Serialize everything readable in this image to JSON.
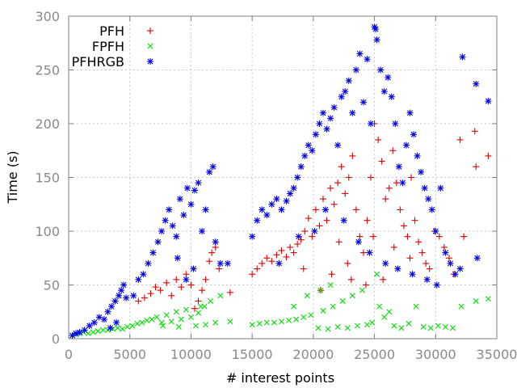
{
  "chart_data": {
    "type": "scatter",
    "title": "",
    "xlabel": "# interest points",
    "ylabel": "Time (s)",
    "xlim": [
      0,
      35000
    ],
    "ylim": [
      0,
      300
    ],
    "x_ticks": [
      "0",
      "5000",
      "10000",
      "15000",
      "20000",
      "25000",
      "30000",
      "35000"
    ],
    "y_ticks": [
      "0",
      "50",
      "100",
      "150",
      "200",
      "250",
      "300"
    ],
    "grid": true,
    "legend_position": "top-left",
    "series": [
      {
        "name": "PFH",
        "color": "#e00000",
        "marker": "plus",
        "points": [
          [
            5700,
            35
          ],
          [
            6200,
            38
          ],
          [
            6700,
            42
          ],
          [
            7100,
            48
          ],
          [
            7500,
            45
          ],
          [
            8000,
            52
          ],
          [
            8400,
            40
          ],
          [
            8800,
            55
          ],
          [
            9200,
            48
          ],
          [
            9600,
            60
          ],
          [
            10000,
            50
          ],
          [
            10300,
            28
          ],
          [
            10600,
            35
          ],
          [
            10900,
            45
          ],
          [
            11200,
            55
          ],
          [
            11500,
            72
          ],
          [
            11700,
            80
          ],
          [
            12000,
            85
          ],
          [
            12300,
            65
          ],
          [
            13200,
            43
          ],
          [
            15000,
            60
          ],
          [
            15400,
            65
          ],
          [
            15800,
            70
          ],
          [
            16200,
            75
          ],
          [
            16600,
            72
          ],
          [
            17000,
            78
          ],
          [
            17400,
            82
          ],
          [
            17800,
            76
          ],
          [
            18100,
            85
          ],
          [
            18400,
            80
          ],
          [
            18700,
            88
          ],
          [
            19000,
            92
          ],
          [
            19300,
            100
          ],
          [
            19600,
            112
          ],
          [
            19900,
            95
          ],
          [
            20200,
            120
          ],
          [
            20500,
            105
          ],
          [
            20800,
            130
          ],
          [
            21100,
            110
          ],
          [
            21400,
            140
          ],
          [
            21700,
            125
          ],
          [
            22000,
            145
          ],
          [
            22300,
            160
          ],
          [
            22600,
            135
          ],
          [
            22900,
            150
          ],
          [
            23200,
            170
          ],
          [
            23500,
            120
          ],
          [
            23800,
            95
          ],
          [
            24100,
            80
          ],
          [
            24400,
            110
          ],
          [
            24700,
            150
          ],
          [
            25000,
            200
          ],
          [
            25300,
            185
          ],
          [
            25600,
            165
          ],
          [
            25900,
            130
          ],
          [
            26200,
            140
          ],
          [
            26500,
            175
          ],
          [
            26800,
            145
          ],
          [
            27100,
            120
          ],
          [
            27400,
            105
          ],
          [
            27700,
            95
          ],
          [
            28000,
            150
          ],
          [
            28300,
            110
          ],
          [
            28600,
            90
          ],
          [
            28900,
            80
          ],
          [
            29200,
            70
          ],
          [
            29500,
            65
          ],
          [
            29900,
            100
          ],
          [
            30300,
            95
          ],
          [
            30700,
            85
          ],
          [
            31100,
            75
          ],
          [
            31500,
            60
          ],
          [
            32000,
            185
          ],
          [
            32300,
            95
          ],
          [
            33200,
            193
          ],
          [
            33300,
            160
          ],
          [
            34300,
            170
          ],
          [
            21500,
            60
          ],
          [
            22800,
            70
          ],
          [
            24300,
            50
          ],
          [
            25700,
            55
          ],
          [
            26600,
            85
          ],
          [
            27900,
            75
          ],
          [
            23100,
            55
          ],
          [
            20600,
            45
          ],
          [
            19200,
            65
          ],
          [
            22100,
            90
          ],
          [
            24900,
            95
          ]
        ]
      },
      {
        "name": "FPFH",
        "color": "#00e000",
        "marker": "x",
        "points": [
          [
            300,
            3
          ],
          [
            600,
            4
          ],
          [
            900,
            5
          ],
          [
            1200,
            6
          ],
          [
            1600,
            5
          ],
          [
            2000,
            6
          ],
          [
            2400,
            7
          ],
          [
            2800,
            8
          ],
          [
            3200,
            8
          ],
          [
            3600,
            9
          ],
          [
            4000,
            10
          ],
          [
            4400,
            9
          ],
          [
            4800,
            11
          ],
          [
            5200,
            12
          ],
          [
            5600,
            14
          ],
          [
            6000,
            15
          ],
          [
            6400,
            17
          ],
          [
            6800,
            18
          ],
          [
            7200,
            20
          ],
          [
            7600,
            15
          ],
          [
            8000,
            22
          ],
          [
            8400,
            16
          ],
          [
            8800,
            25
          ],
          [
            9200,
            18
          ],
          [
            9600,
            27
          ],
          [
            10000,
            20
          ],
          [
            10400,
            12
          ],
          [
            10800,
            30
          ],
          [
            11200,
            13
          ],
          [
            11600,
            35
          ],
          [
            12000,
            15
          ],
          [
            12400,
            40
          ],
          [
            13200,
            16
          ],
          [
            15000,
            13
          ],
          [
            15600,
            14
          ],
          [
            16200,
            15
          ],
          [
            16800,
            15
          ],
          [
            17400,
            16
          ],
          [
            18000,
            17
          ],
          [
            18600,
            18
          ],
          [
            19200,
            20
          ],
          [
            19800,
            22
          ],
          [
            20400,
            10
          ],
          [
            20800,
            26
          ],
          [
            21200,
            9
          ],
          [
            21600,
            30
          ],
          [
            22000,
            11
          ],
          [
            22400,
            35
          ],
          [
            22800,
            10
          ],
          [
            23200,
            40
          ],
          [
            23600,
            12
          ],
          [
            24000,
            45
          ],
          [
            24400,
            13
          ],
          [
            24800,
            15
          ],
          [
            25200,
            60
          ],
          [
            25400,
            30
          ],
          [
            25800,
            20
          ],
          [
            26200,
            25
          ],
          [
            26600,
            12
          ],
          [
            27200,
            10
          ],
          [
            27800,
            14
          ],
          [
            28400,
            30
          ],
          [
            29000,
            11
          ],
          [
            29600,
            10
          ],
          [
            30200,
            12
          ],
          [
            30800,
            11
          ],
          [
            31400,
            10
          ],
          [
            32100,
            30
          ],
          [
            33300,
            35
          ],
          [
            34300,
            37
          ],
          [
            19500,
            40
          ],
          [
            20600,
            45
          ],
          [
            21400,
            50
          ],
          [
            18400,
            30
          ],
          [
            7700,
            12
          ],
          [
            9000,
            11
          ],
          [
            10600,
            24
          ],
          [
            11100,
            30
          ]
        ]
      },
      {
        "name": "PFHRGB",
        "color": "#0000e6",
        "marker": "star",
        "points": [
          [
            300,
            3
          ],
          [
            600,
            5
          ],
          [
            900,
            6
          ],
          [
            1300,
            8
          ],
          [
            1700,
            12
          ],
          [
            2100,
            15
          ],
          [
            2500,
            20
          ],
          [
            2900,
            18
          ],
          [
            3200,
            25
          ],
          [
            3500,
            30
          ],
          [
            3800,
            35
          ],
          [
            4100,
            40
          ],
          [
            4300,
            45
          ],
          [
            4500,
            50
          ],
          [
            4700,
            38
          ],
          [
            3400,
            10
          ],
          [
            3900,
            15
          ],
          [
            5300,
            40
          ],
          [
            5700,
            55
          ],
          [
            6100,
            60
          ],
          [
            6500,
            70
          ],
          [
            6900,
            80
          ],
          [
            7300,
            90
          ],
          [
            7600,
            100
          ],
          [
            7900,
            110
          ],
          [
            8200,
            120
          ],
          [
            8500,
            105
          ],
          [
            8800,
            95
          ],
          [
            9100,
            130
          ],
          [
            9400,
            115
          ],
          [
            9700,
            140
          ],
          [
            10000,
            125
          ],
          [
            10300,
            138
          ],
          [
            10600,
            145
          ],
          [
            10900,
            100
          ],
          [
            11200,
            120
          ],
          [
            11500,
            155
          ],
          [
            11800,
            160
          ],
          [
            12000,
            90
          ],
          [
            12400,
            70
          ],
          [
            13000,
            70
          ],
          [
            8900,
            75
          ],
          [
            10200,
            65
          ],
          [
            9600,
            55
          ],
          [
            15000,
            95
          ],
          [
            15400,
            110
          ],
          [
            15800,
            120
          ],
          [
            16200,
            115
          ],
          [
            16600,
            125
          ],
          [
            17000,
            130
          ],
          [
            17400,
            120
          ],
          [
            17800,
            128
          ],
          [
            18100,
            135
          ],
          [
            18400,
            140
          ],
          [
            18700,
            150
          ],
          [
            19000,
            160
          ],
          [
            19300,
            170
          ],
          [
            19600,
            180
          ],
          [
            19900,
            175
          ],
          [
            20200,
            190
          ],
          [
            20500,
            200
          ],
          [
            20800,
            210
          ],
          [
            21100,
            195
          ],
          [
            21400,
            205
          ],
          [
            21700,
            215
          ],
          [
            22000,
            180
          ],
          [
            22300,
            225
          ],
          [
            22600,
            230
          ],
          [
            22900,
            240
          ],
          [
            23200,
            210
          ],
          [
            23500,
            250
          ],
          [
            23800,
            265
          ],
          [
            24100,
            220
          ],
          [
            24400,
            260
          ],
          [
            24700,
            200
          ],
          [
            25000,
            290
          ],
          [
            25100,
            288
          ],
          [
            25200,
            278
          ],
          [
            25500,
            250
          ],
          [
            25800,
            230
          ],
          [
            26100,
            243
          ],
          [
            26400,
            225
          ],
          [
            26700,
            200
          ],
          [
            27000,
            160
          ],
          [
            27300,
            145
          ],
          [
            27600,
            180
          ],
          [
            27900,
            210
          ],
          [
            28200,
            190
          ],
          [
            28500,
            170
          ],
          [
            28800,
            155
          ],
          [
            29100,
            140
          ],
          [
            29400,
            130
          ],
          [
            29700,
            120
          ],
          [
            30000,
            100
          ],
          [
            30400,
            140
          ],
          [
            30800,
            80
          ],
          [
            31200,
            70
          ],
          [
            31600,
            60
          ],
          [
            32000,
            65
          ],
          [
            32200,
            262
          ],
          [
            33300,
            237
          ],
          [
            33400,
            75
          ],
          [
            34300,
            221
          ],
          [
            21000,
            120
          ],
          [
            22500,
            110
          ],
          [
            23700,
            90
          ],
          [
            24600,
            80
          ],
          [
            25900,
            70
          ],
          [
            26900,
            65
          ],
          [
            28100,
            60
          ],
          [
            29300,
            55
          ],
          [
            30100,
            50
          ],
          [
            18800,
            95
          ],
          [
            20100,
            100
          ],
          [
            17200,
            70
          ]
        ]
      }
    ]
  }
}
